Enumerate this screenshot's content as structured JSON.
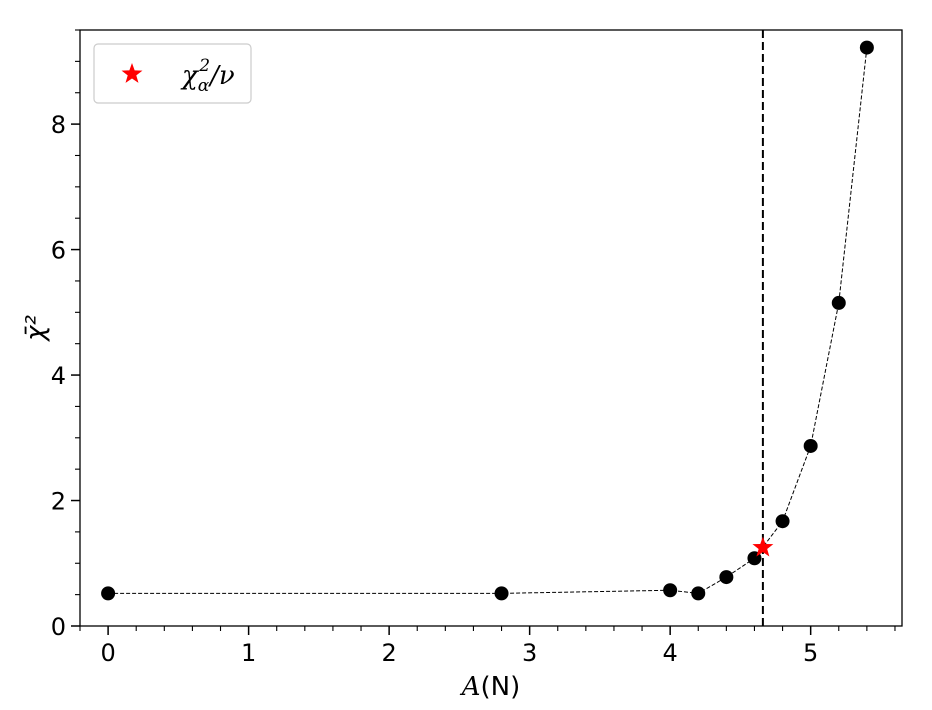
{
  "chart_data": {
    "type": "scatter",
    "xlabel_var": "A",
    "xlabel_unit": "(N)",
    "ylabel": "χ̄²",
    "xlim": [
      -0.2,
      5.65
    ],
    "ylim": [
      0,
      9.5
    ],
    "xticks": [
      0,
      1,
      2,
      3,
      4,
      5
    ],
    "yticks": [
      0,
      2,
      4,
      6,
      8
    ],
    "grid": false,
    "legend_position": "top-left",
    "series": [
      {
        "marker": "circle",
        "color": "#000000",
        "line_style": "dashed",
        "x": [
          0,
          2.8,
          4.0,
          4.2,
          4.4,
          4.6,
          4.8,
          5.0,
          5.2,
          5.4
        ],
        "y": [
          0.52,
          0.52,
          0.57,
          0.52,
          0.78,
          1.08,
          1.67,
          2.87,
          5.15,
          9.22
        ]
      },
      {
        "name_main": "χ",
        "name_sub": "α",
        "name_sup": "2",
        "name_tail": "/ν",
        "marker": "star",
        "color": "#ff0000",
        "x": [
          4.66
        ],
        "y": [
          1.25
        ]
      }
    ],
    "vline": {
      "x": 4.66,
      "style": "dashed",
      "color": "#000000"
    }
  }
}
